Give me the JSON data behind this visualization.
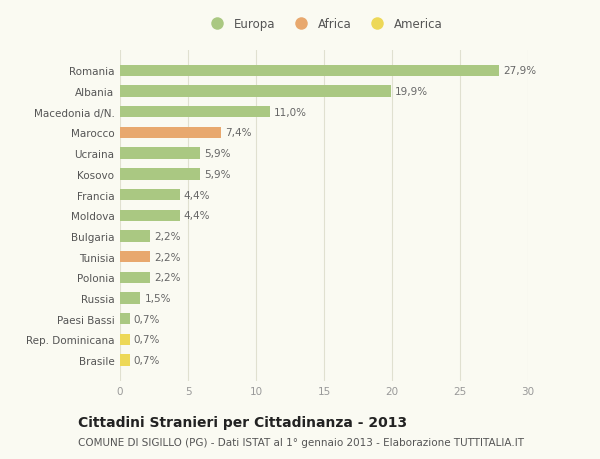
{
  "categories": [
    "Romania",
    "Albania",
    "Macedonia d/N.",
    "Marocco",
    "Ucraina",
    "Kosovo",
    "Francia",
    "Moldova",
    "Bulgaria",
    "Tunisia",
    "Polonia",
    "Russia",
    "Paesi Bassi",
    "Rep. Dominicana",
    "Brasile"
  ],
  "values": [
    27.9,
    19.9,
    11.0,
    7.4,
    5.9,
    5.9,
    4.4,
    4.4,
    2.2,
    2.2,
    2.2,
    1.5,
    0.7,
    0.7,
    0.7
  ],
  "continents": [
    "Europa",
    "Europa",
    "Europa",
    "Africa",
    "Europa",
    "Europa",
    "Europa",
    "Europa",
    "Europa",
    "Africa",
    "Europa",
    "Europa",
    "Europa",
    "America",
    "America"
  ],
  "colors": {
    "Europa": "#aac882",
    "Africa": "#e8a86e",
    "America": "#edd858"
  },
  "labels": [
    "27,9%",
    "19,9%",
    "11,0%",
    "7,4%",
    "5,9%",
    "5,9%",
    "4,4%",
    "4,4%",
    "2,2%",
    "2,2%",
    "2,2%",
    "1,5%",
    "0,7%",
    "0,7%",
    "0,7%"
  ],
  "xlim": [
    0,
    30
  ],
  "xticks": [
    0,
    5,
    10,
    15,
    20,
    25,
    30
  ],
  "title": "Cittadini Stranieri per Cittadinanza - 2013",
  "subtitle": "COMUNE DI SIGILLO (PG) - Dati ISTAT al 1° gennaio 2013 - Elaborazione TUTTITALIA.IT",
  "legend_labels": [
    "Europa",
    "Africa",
    "America"
  ],
  "background_color": "#fafaf2",
  "grid_color": "#e0e0d0",
  "bar_height": 0.55,
  "title_fontsize": 10,
  "subtitle_fontsize": 7.5,
  "label_fontsize": 7.5,
  "tick_fontsize": 7.5,
  "legend_fontsize": 8.5
}
